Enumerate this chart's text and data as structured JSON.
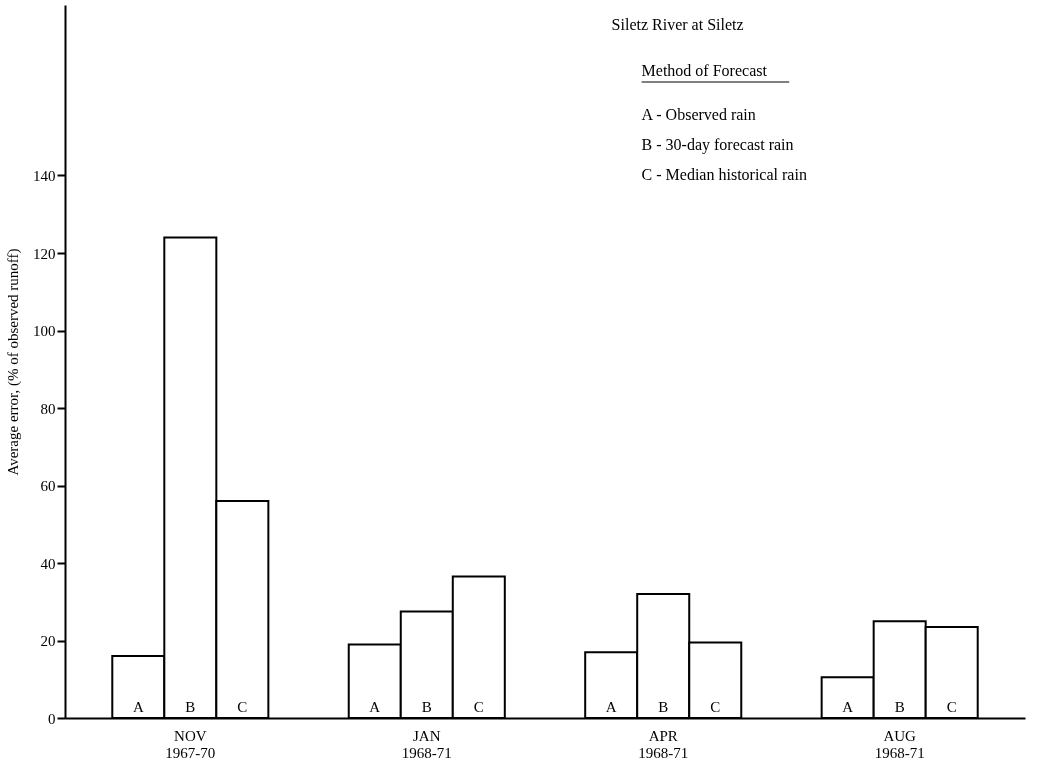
{
  "chart_data": {
    "type": "bar",
    "title": "Siletz River at Siletz",
    "legend_title": "Method of Forecast",
    "annotations": [
      "A - Observed rain",
      "B - 30-day forecast rain",
      "C - Median historical rain"
    ],
    "ylabel": "Average error, (% of observed runoff)",
    "categories": [
      "NOV\n1967-70",
      "JAN\n1968-71",
      "APR\n1968-71",
      "AUG\n1968-71"
    ],
    "series": [
      {
        "name": "A",
        "color": "#ffffff",
        "values": [
          16,
          19,
          17,
          10.5
        ]
      },
      {
        "name": "B",
        "color": "#ffffff",
        "values": [
          124,
          27.5,
          32,
          25
        ]
      },
      {
        "name": "C",
        "color": "#ffffff",
        "values": [
          56,
          36.5,
          19.5,
          23.5
        ]
      }
    ],
    "ylim": [
      0,
      184
    ],
    "yticks": [
      0,
      20,
      40,
      60,
      80,
      100,
      120,
      140
    ],
    "grid": false
  }
}
